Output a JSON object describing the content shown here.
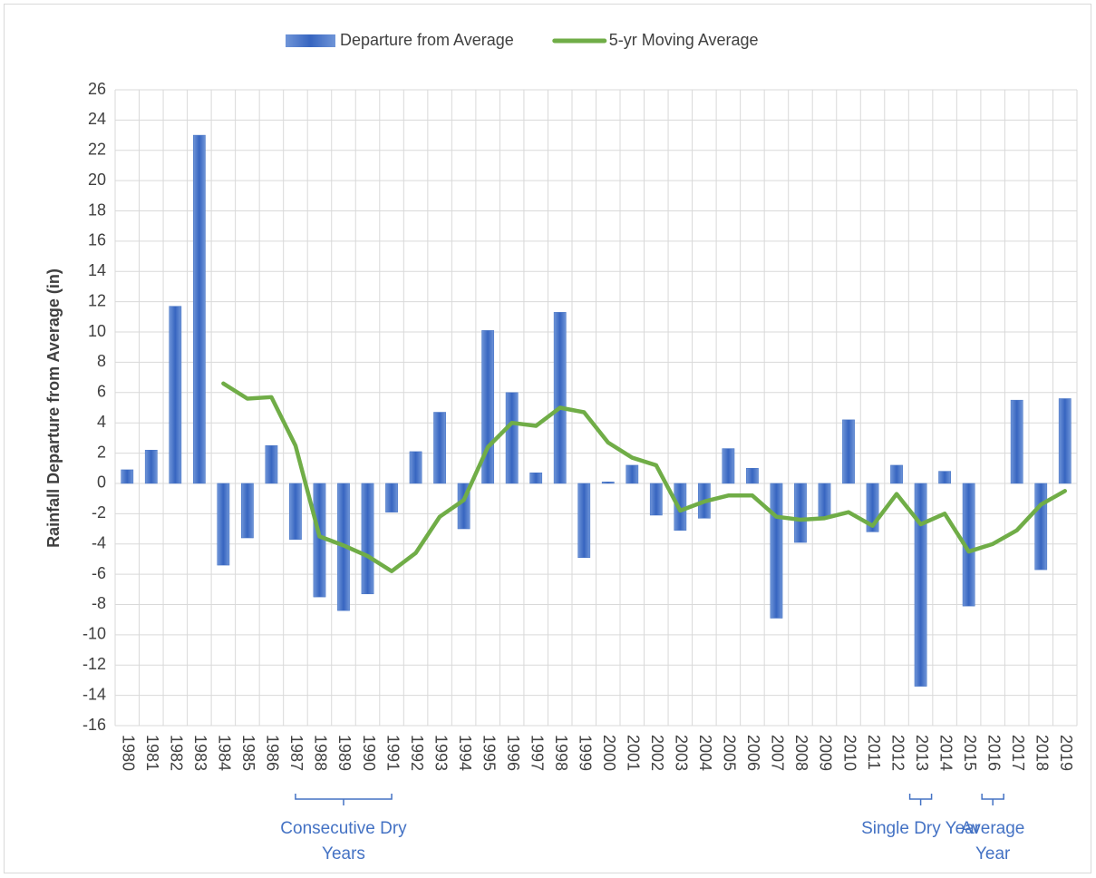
{
  "chart_data": {
    "type": "bar_line",
    "y_label": "Rainfall Departure from Average (in)",
    "categories": [
      "1980",
      "1981",
      "1982",
      "1983",
      "1984",
      "1985",
      "1986",
      "1987",
      "1988",
      "1989",
      "1990",
      "1991",
      "1992",
      "1993",
      "1994",
      "1995",
      "1996",
      "1997",
      "1998",
      "1999",
      "2000",
      "2001",
      "2002",
      "2003",
      "2004",
      "2005",
      "2006",
      "2007",
      "2008",
      "2009",
      "2010",
      "2011",
      "2012",
      "2013",
      "2014",
      "2015",
      "2016",
      "2017",
      "2018",
      "2019"
    ],
    "series": [
      {
        "name": "Departure from Average",
        "type": "bar",
        "color": "#4472c4",
        "values": [
          0.9,
          2.2,
          11.7,
          23,
          -5.4,
          -3.6,
          2.5,
          -3.7,
          -7.5,
          -8.4,
          -7.3,
          -1.9,
          2.1,
          4.7,
          -3,
          10.1,
          6,
          0.7,
          11.3,
          -4.9,
          0.1,
          1.2,
          -2.1,
          -3.1,
          -2.3,
          2.3,
          1,
          -8.9,
          -3.9,
          -2.2,
          4.2,
          -3.2,
          1.2,
          -13.4,
          0.8,
          -8.1,
          0,
          5.5,
          -5.7,
          5.6
        ]
      },
      {
        "name": "5-yr Moving Average",
        "type": "line",
        "color": "#70ad47",
        "values": [
          null,
          null,
          null,
          null,
          6.6,
          5.6,
          5.7,
          2.5,
          -3.5,
          -4.1,
          -4.8,
          -5.8,
          -4.6,
          -2.2,
          -1.1,
          2.4,
          4.0,
          3.8,
          5.0,
          4.7,
          2.7,
          1.7,
          1.2,
          -1.8,
          -1.2,
          -0.8,
          -0.8,
          -2.2,
          -2.4,
          -2.3,
          -1.9,
          -2.8,
          -0.7,
          -2.7,
          -2.0,
          -4.5,
          -4.0,
          -3.1,
          -1.4,
          -0.5
        ]
      }
    ],
    "ylim": [
      -16,
      26
    ],
    "yticks": [
      -16,
      -14,
      -12,
      -10,
      -8,
      -6,
      -4,
      -2,
      0,
      2,
      4,
      6,
      8,
      10,
      12,
      14,
      16,
      18,
      20,
      22,
      24,
      26
    ],
    "grid": true,
    "legend": "top",
    "annotations": [
      {
        "text": "Consecutive Dry Years",
        "from": "1987",
        "to": "1991"
      },
      {
        "text": "Single Dry Year",
        "from": "2013",
        "to": "2013"
      },
      {
        "text": "Average Year",
        "from": "2016",
        "to": "2016"
      }
    ]
  }
}
